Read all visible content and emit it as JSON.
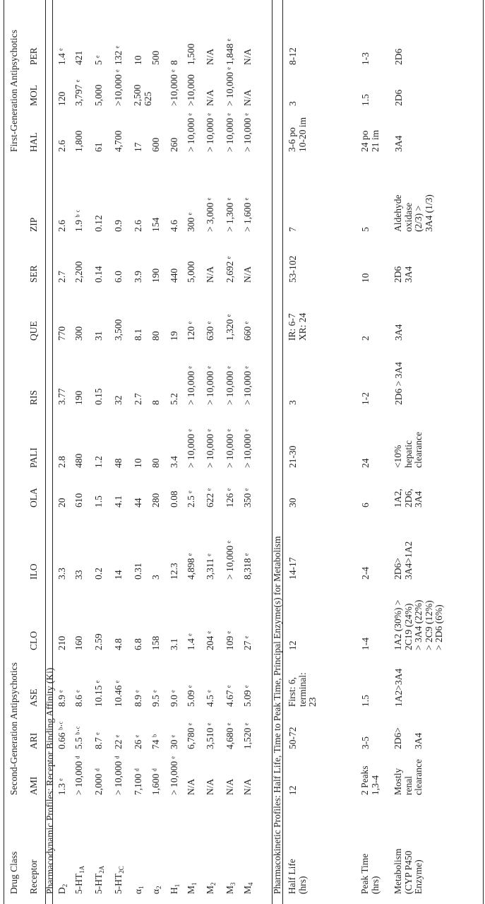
{
  "table": {
    "header_row1": {
      "label": "Drug Class",
      "second_gen": "Second-Generation Antipsychotics",
      "first_gen": "First-Generation Antipsychotics"
    },
    "header_row2": {
      "label": "Receptor",
      "drugs": [
        "AMI",
        "ARI",
        "ASE",
        "CLO",
        "ILO",
        "OLA",
        "PALI",
        "RIS",
        "QUE",
        "SER",
        "ZIP",
        "HAL",
        "MOL",
        "PER"
      ]
    },
    "pd_section_title": "Pharmacodynamic Profiles: Receptor Binding Affinity (Ki)",
    "pd_rows": [
      {
        "receptor": "D",
        "sub": "2",
        "values": [
          "1.3 ᵉ",
          "0.66 ᵇ·ᶜ",
          "8.9 ᵉ",
          "210",
          "3.3",
          "20",
          "2.8",
          "3.77",
          "770",
          "2.7",
          "2.6",
          "2.6",
          "120",
          "1.4 ᵉ"
        ]
      },
      {
        "receptor": "5-HT",
        "sub": "1A",
        "values": [
          "> 10,000 ᵈ",
          "5.5 ᵇ·ᶜ",
          "8.6 ᵉ",
          "160",
          "33",
          "610",
          "480",
          "190",
          "300",
          "2,200",
          "1.9 ᵇ ᶜ",
          "1,800",
          "3,797 ᵉ",
          "421"
        ]
      },
      {
        "receptor": "5-HT",
        "sub": "2A",
        "values": [
          "2,000 ᵈ",
          "8.7 ᵉ",
          "10.15 ᵉ",
          "2.59",
          "0.2",
          "1.5",
          "1.2",
          "0.15",
          "31",
          "0.14",
          "0.12",
          "61",
          "5,000",
          "5 ᵉ"
        ]
      },
      {
        "receptor": "5-HT",
        "sub": "2C",
        "values": [
          "> 10,000 ᵈ",
          "22 ᵉ",
          "10.46 ᵉ",
          "4.8",
          "14",
          "4.1",
          "48",
          "32",
          "3,500",
          "6.0",
          "0.9",
          "4,700",
          ">10,000 ᵉ",
          "132 ᵉ"
        ]
      },
      {
        "receptor": "α",
        "sub": "1",
        "values": [
          "7,100 ᵈ",
          "26 ᵉ",
          "8.9 ᵉ",
          "6.8",
          "0.31",
          "44",
          "10",
          "2.7",
          "8.1",
          "3.9",
          "2.6",
          "17",
          "2,500\n625",
          "10"
        ]
      },
      {
        "receptor": "α",
        "sub": "2",
        "values": [
          "1,600 ᵈ",
          "74 ᵇ",
          "9.5 ᵉ",
          "158",
          "3",
          "280",
          "80",
          "8",
          "80",
          "190",
          "154",
          "600",
          "",
          "500"
        ]
      },
      {
        "receptor": "H",
        "sub": "1",
        "values": [
          "> 10,000 ᵉ",
          "30 ᵉ",
          "9.0 ᵉ",
          "3.1",
          "12.3",
          "0.08",
          "3.4",
          "5.2",
          "19",
          "440",
          "4.6",
          "260",
          ">10,000 ᵉ",
          "8"
        ]
      },
      {
        "receptor": "M",
        "sub": "1",
        "values": [
          "N/A",
          "6,780 ᵉ",
          "5.09 ᵉ",
          "1.4 ᵉ",
          "4,898 ᵉ",
          "2.5 ᵉ",
          "> 10,000 ᵉ",
          "> 10,000 ᵉ",
          "120 ᵉ",
          "5,000",
          "300 ᵉ",
          "> 10,000 ᵉ",
          ">10,000",
          "1,500"
        ]
      },
      {
        "receptor": "M",
        "sub": "2",
        "values": [
          "N/A",
          "3,510 ᵉ",
          "4.5 ᵉ",
          "204 ᵉ",
          "3,311 ᵉ",
          "622 ᵉ",
          "> 10,000 ᵉ",
          "> 10,000 ᵉ",
          "630 ᵉ",
          "N/A",
          "> 3,000 ᵉ",
          "> 10,000 ᵉ",
          "N/A",
          "N/A"
        ]
      },
      {
        "receptor": "M",
        "sub": "3",
        "values": [
          "N/A",
          "4,680 ᵉ",
          "4.67 ᵉ",
          "109 ᵉ",
          "> 10,000 ᵉ",
          "126 ᵉ",
          "> 10,000 ᵉ",
          "> 10,000 ᵉ",
          "1,320 ᵉ",
          "2,692 ᵉ",
          "> 1,300 ᵉ",
          "> 10,000 ᵉ",
          "> 10,000 ᵉ",
          "1,848 ᵉ"
        ]
      },
      {
        "receptor": "M",
        "sub": "4",
        "values": [
          "N/A",
          "1,520 ᵉ",
          "5.09 ᵉ",
          "27 ᵉ",
          "8,318 ᵉ",
          "350 ᵉ",
          "> 10,000 ᵉ",
          "> 10,000 ᵉ",
          "660 ᵉ",
          "N/A",
          "> 1,600 ᵉ",
          "> 10,000 ᵉ",
          "N/A",
          "N/A"
        ]
      }
    ],
    "pk_section_title": "Pharmacokinetic Profiles: Half Life, Time to Peak Time, Principal Enzyme(s) for Metabolism",
    "pk_rows": [
      {
        "label": "Half Life\n(hrs)",
        "values": [
          "12",
          "50-72",
          "First: 6,\nterminal:\n23",
          "12",
          "14-17",
          "30",
          "21-30",
          "3",
          "IR: 6-7\nXR: 24",
          "53-102",
          "7",
          "3-6 po\n10-20 im",
          "3",
          "8-12"
        ]
      },
      {
        "label": "Peak Time\n(hrs)",
        "values": [
          "2 Peaks\n1,3-4",
          "3-5",
          "1.5",
          "1-4",
          "2-4",
          "6",
          "24",
          "1-2",
          "2",
          "10",
          "5",
          "24 po\n21 im",
          "1.5",
          "1-3"
        ]
      },
      {
        "label": "Metabolism\n(CYP P450\nEnzyme)",
        "values": [
          "Mostly\nrenal\nclearance",
          "2D6>\n\n3A4",
          "1A2>3A4",
          "1A2 (30%) >\n2C19 (24%)\n> 3A4 (22%)\n> 2C9 (12%)\n> 2D6 (6%)",
          "2D6>\n3A4>1A2",
          "1A2,\n2D6,\n3A4",
          "<10%\nhepatic\nclearance",
          "2D6 > 3A4",
          "3A4",
          "2D6\n3A4",
          "Aldehyde\noxidase\n(2/3) >\n3A4 (1/3)",
          "3A4",
          "2D6",
          "2D6"
        ]
      }
    ]
  }
}
